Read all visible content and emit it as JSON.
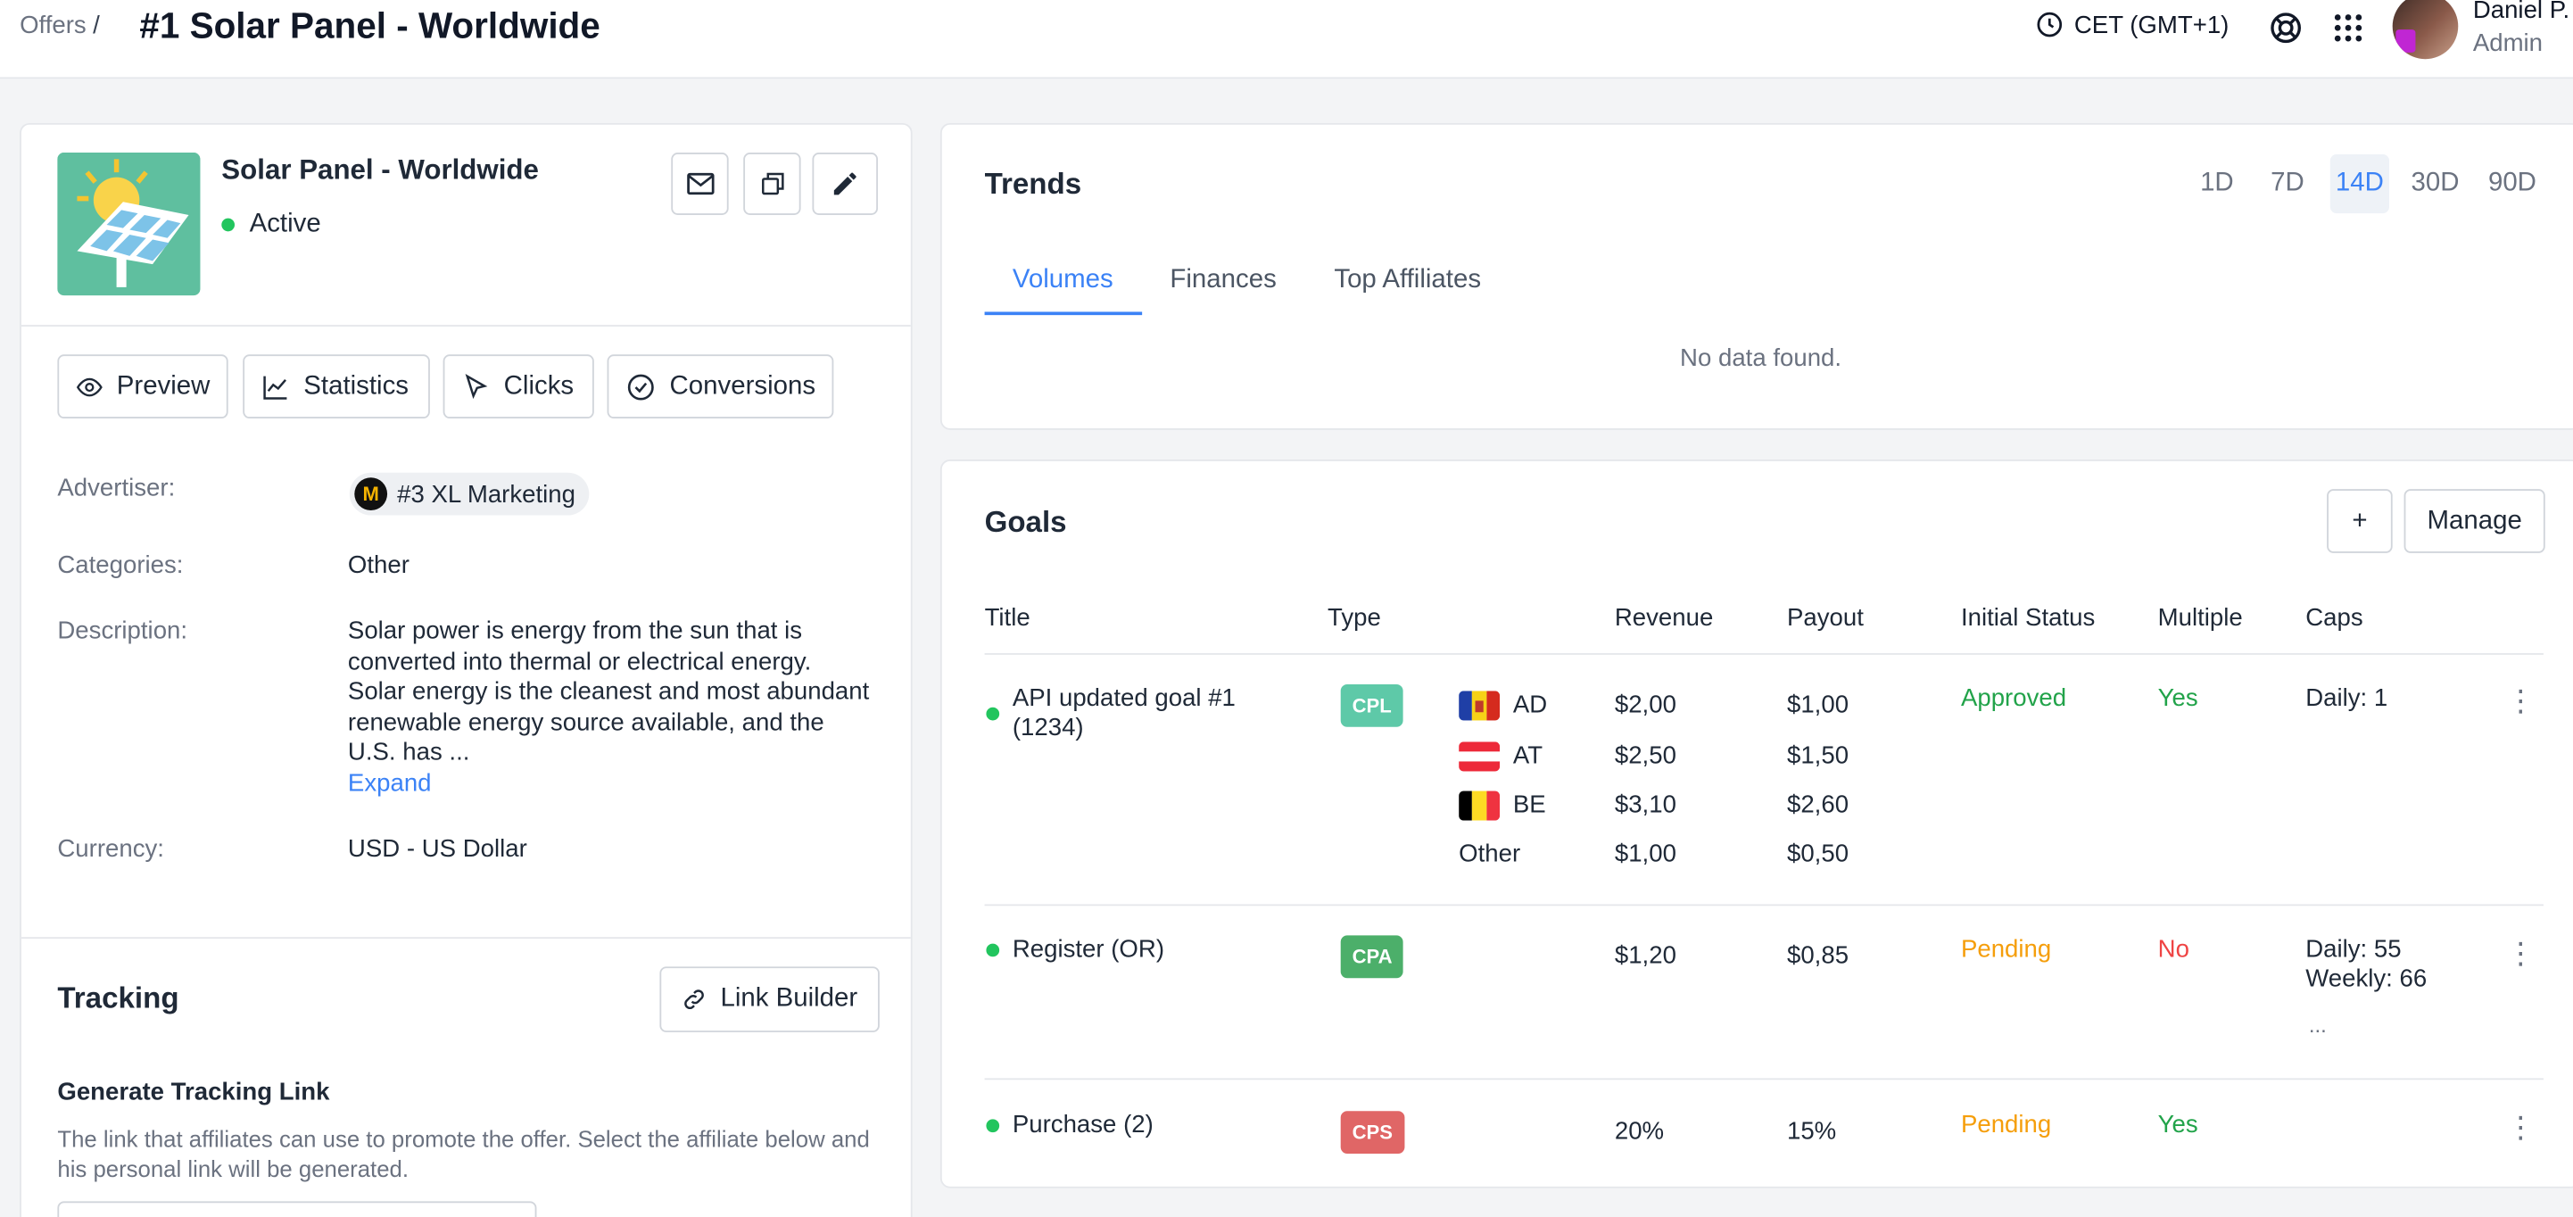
{
  "header": {
    "breadcrumb": "Offers",
    "breadcrumb_sep": "/",
    "title": "#1 Solar Panel - Worldwide",
    "timezone": "CET (GMT+1)",
    "user_name": "Daniel P.",
    "user_role": "Admin"
  },
  "offer": {
    "name": "Solar Panel - Worldwide",
    "status": "Active",
    "status_color": "#22c55e"
  },
  "actions": {
    "preview": "Preview",
    "statistics": "Statistics",
    "clicks": "Clicks",
    "conversions": "Conversions"
  },
  "details": {
    "advertiser_label": "Advertiser:",
    "advertiser_value": "#3  XL Marketing",
    "advertiser_icon": "M",
    "categories_label": "Categories:",
    "categories_value": "Other",
    "description_label": "Description:",
    "description_value": "Solar power is energy from the sun that is converted into thermal or electrical energy. Solar energy is the cleanest and most abundant renewable energy source available, and the U.S. has ...",
    "expand": "Expand",
    "currency_label": "Currency:",
    "currency_value": "USD - US Dollar"
  },
  "tracking": {
    "title": "Tracking",
    "link_builder": "Link Builder",
    "generate_title": "Generate Tracking Link",
    "generate_desc": "The link that affiliates can use to promote the offer. Select the affiliate below and his personal link will be generated."
  },
  "trends": {
    "title": "Trends",
    "ranges": [
      "1D",
      "7D",
      "14D",
      "30D",
      "90D"
    ],
    "active_range": "14D",
    "tabs": [
      "Volumes",
      "Finances",
      "Top Affiliates"
    ],
    "active_tab": "Volumes",
    "empty": "No data found."
  },
  "goals": {
    "title": "Goals",
    "add": "+",
    "manage": "Manage",
    "columns": [
      "Title",
      "Type",
      "Revenue",
      "Payout",
      "Initial Status",
      "Multiple",
      "Caps"
    ],
    "rows": [
      {
        "title": "API updated goal #1 (1234)",
        "type": "CPL",
        "type_color": "#5ec9a8",
        "geo": [
          {
            "code": "AD",
            "revenue": "$2,00",
            "payout": "$1,00"
          },
          {
            "code": "AT",
            "revenue": "$2,50",
            "payout": "$1,50"
          },
          {
            "code": "BE",
            "revenue": "$3,10",
            "payout": "$2,60"
          },
          {
            "code": "Other",
            "revenue": "$1,00",
            "payout": "$0,50"
          }
        ],
        "initial_status": "Approved",
        "multiple": "Yes",
        "caps": "Daily: 1"
      },
      {
        "title": "Register (OR)",
        "type": "CPA",
        "type_color": "#4caf6a",
        "revenue": "$1,20",
        "payout": "$0,85",
        "initial_status": "Pending",
        "multiple": "No",
        "caps": "Daily: 55 Weekly: 66",
        "caps_more": "..."
      },
      {
        "title": "Purchase (2)",
        "type": "CPS",
        "type_color": "#e06666",
        "revenue": "20%",
        "payout": "15%",
        "initial_status": "Pending",
        "multiple": "Yes",
        "caps": ""
      }
    ]
  },
  "colors": {
    "accent": "#3b82f6",
    "success": "#22a34a",
    "warning": "#f59e0b",
    "danger": "#ef4444"
  }
}
